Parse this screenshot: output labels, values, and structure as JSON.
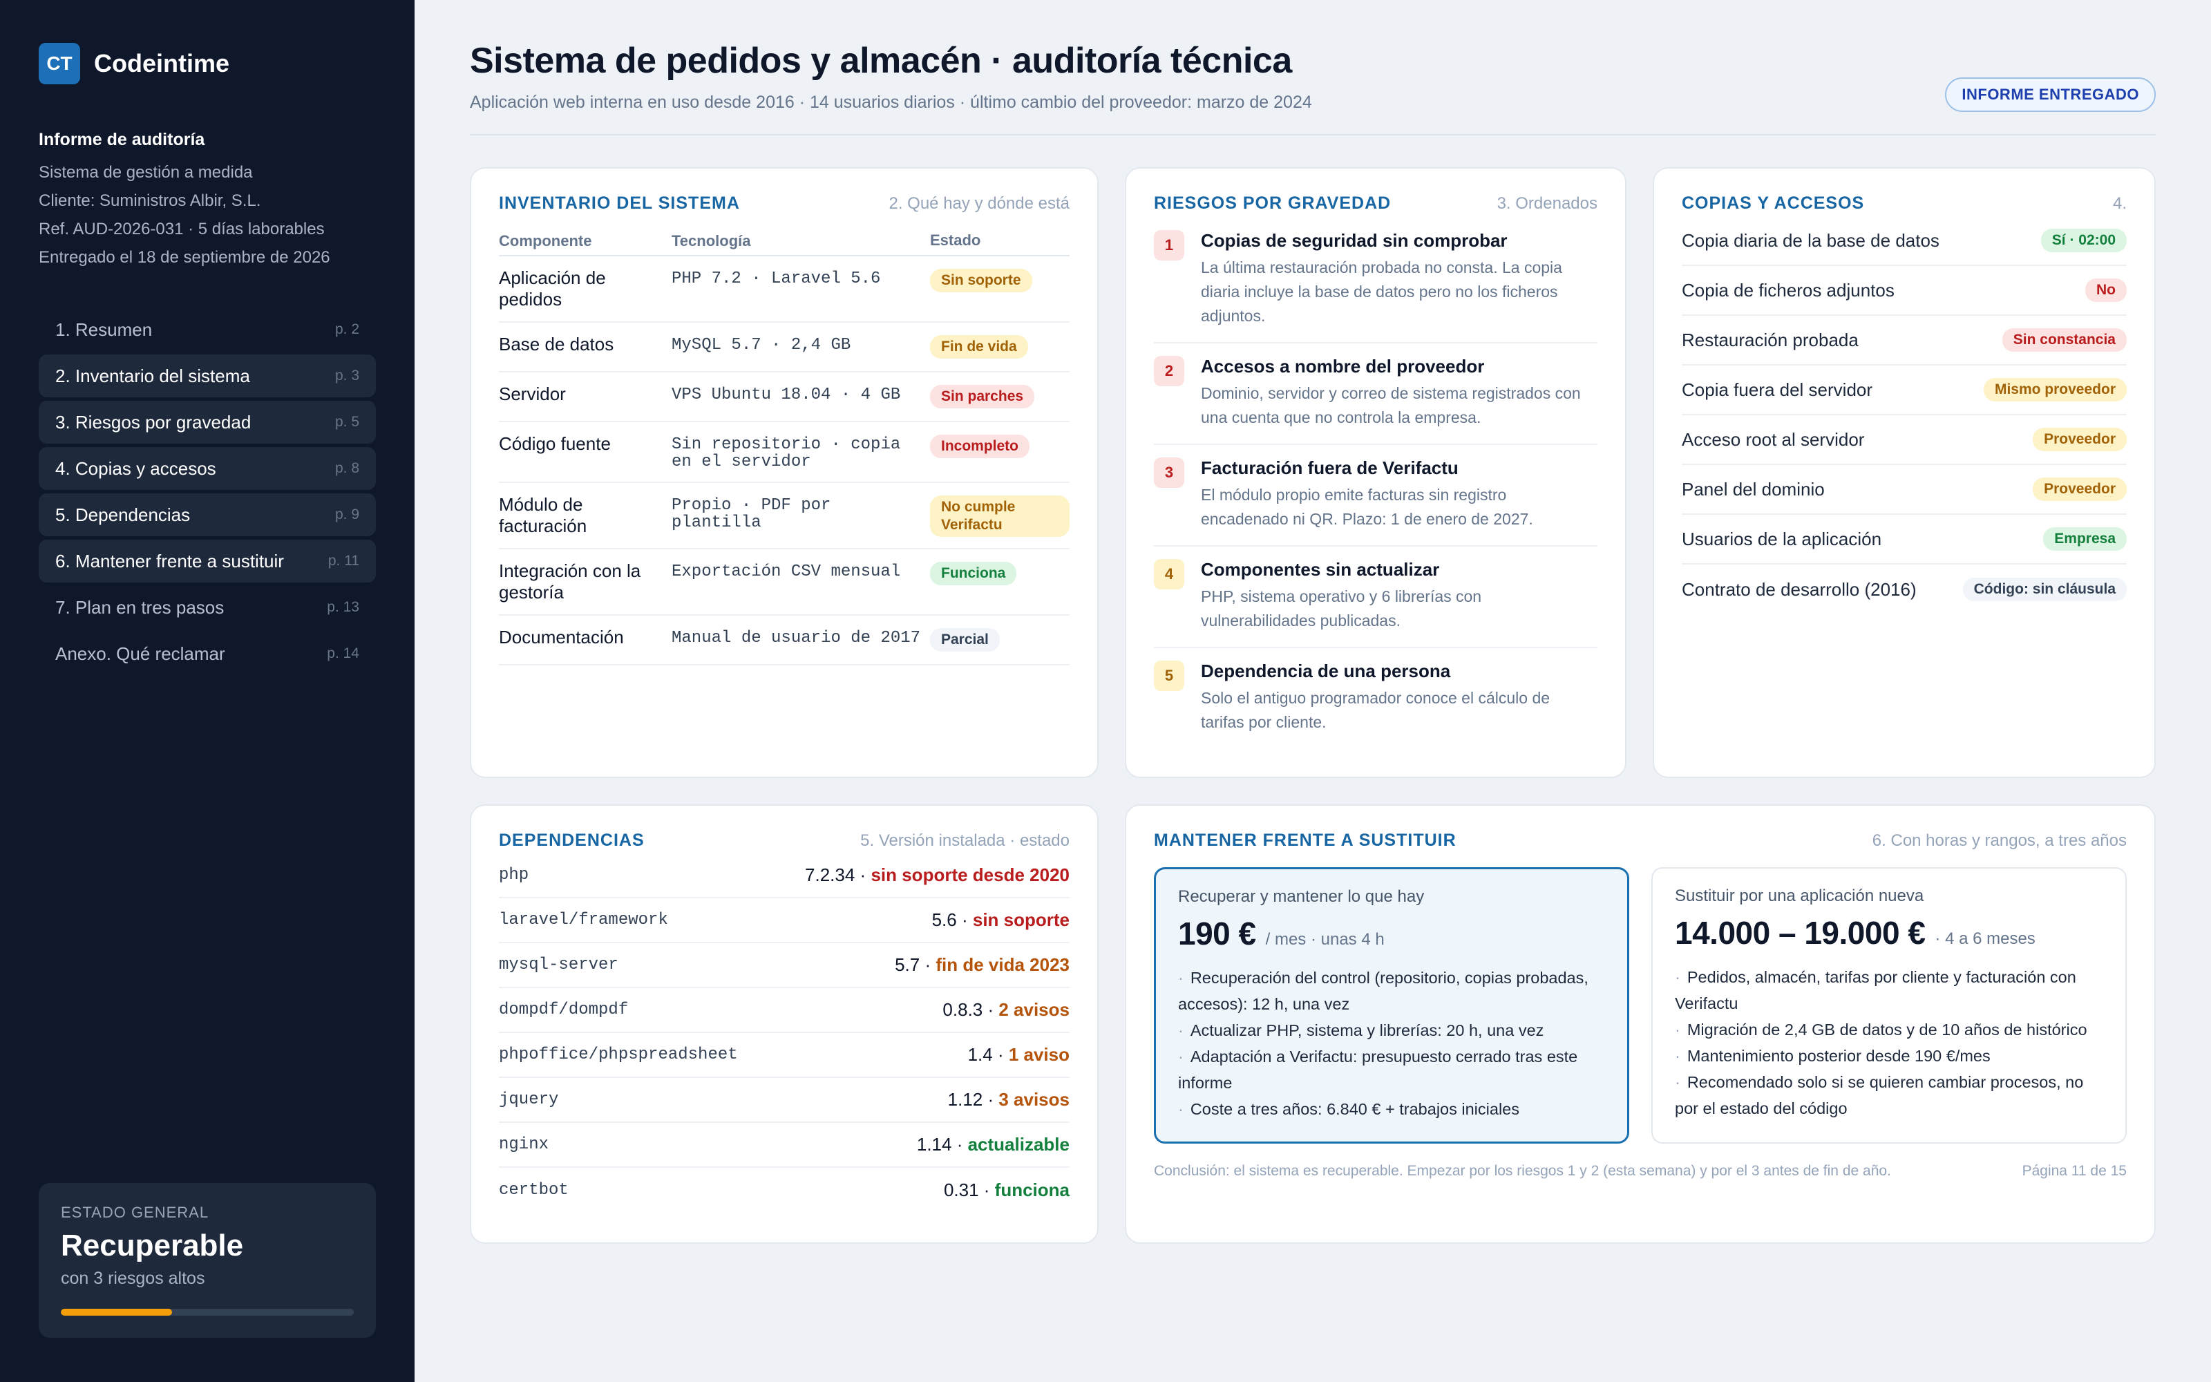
{
  "brand": {
    "mark": "CT",
    "name": "Codeintime"
  },
  "report": {
    "title": "Informe de auditoría",
    "lines": [
      "Sistema de gestión a medida",
      "Cliente: Suministros Albir, S.L.",
      "Ref. AUD-2026-031 · 5 días laborables",
      "Entregado el 18 de septiembre de 2026"
    ]
  },
  "toc": [
    {
      "label": "1. Resumen",
      "page": "p. 2",
      "active": false
    },
    {
      "label": "2. Inventario del sistema",
      "page": "p. 3",
      "active": true
    },
    {
      "label": "3. Riesgos por gravedad",
      "page": "p. 5",
      "active": true
    },
    {
      "label": "4. Copias y accesos",
      "page": "p. 8",
      "active": true
    },
    {
      "label": "5. Dependencias",
      "page": "p. 9",
      "active": true
    },
    {
      "label": "6. Mantener frente a sustituir",
      "page": "p. 11",
      "active": true
    },
    {
      "label": "7. Plan en tres pasos",
      "page": "p. 13",
      "active": false
    },
    {
      "label": "Anexo. Qué reclamar",
      "page": "p. 14",
      "active": false
    }
  ],
  "status": {
    "label": "ESTADO GENERAL",
    "value": "Recuperable",
    "sub": "con 3 riesgos altos",
    "progress": 0.38,
    "color": "#f59e0b"
  },
  "header": {
    "title": "Sistema de pedidos y almacén · auditoría técnica",
    "subtitle": "Aplicación web interna en uso desde 2016 · 14 usuarios diarios · último cambio del proveedor: marzo de 2024",
    "badge": "INFORME ENTREGADO"
  },
  "inventory": {
    "title": "INVENTARIO DEL SISTEMA",
    "note": "2. Qué hay y dónde está",
    "columns": [
      "Componente",
      "Tecnología",
      "Estado"
    ],
    "rows": [
      {
        "component": "Aplicación de pedidos",
        "tech": "PHP 7.2 · Laravel 5.6",
        "state": "Sin soporte",
        "tone": "amber"
      },
      {
        "component": "Base de datos",
        "tech": "MySQL 5.7 · 2,4 GB",
        "state": "Fin de vida",
        "tone": "amber"
      },
      {
        "component": "Servidor",
        "tech": "VPS Ubuntu 18.04 · 4 GB",
        "state": "Sin parches",
        "tone": "red"
      },
      {
        "component": "Código fuente",
        "tech": "Sin repositorio · copia en el servidor",
        "state": "Incompleto",
        "tone": "red"
      },
      {
        "component": "Módulo de facturación",
        "tech": "Propio · PDF por plantilla",
        "state": "No cumple Verifactu",
        "tone": "amber"
      },
      {
        "component": "Integración con la gestoría",
        "tech": "Exportación CSV mensual",
        "state": "Funciona",
        "tone": "green"
      },
      {
        "component": "Documentación",
        "tech": "Manual de usuario de 2017",
        "state": "Parcial",
        "tone": "gray"
      }
    ]
  },
  "risks": {
    "title": "RIESGOS POR GRAVEDAD",
    "note": "3. Ordenados",
    "items": [
      {
        "num": "1",
        "tone": "red",
        "title": "Copias de seguridad sin comprobar",
        "desc": "La última restauración probada no consta. La copia diaria incluye la base de datos pero no los ficheros adjuntos."
      },
      {
        "num": "2",
        "tone": "red",
        "title": "Accesos a nombre del proveedor",
        "desc": "Dominio, servidor y correo de sistema registrados con una cuenta que no controla la empresa."
      },
      {
        "num": "3",
        "tone": "red",
        "title": "Facturación fuera de Verifactu",
        "desc": "El módulo propio emite facturas sin registro encadenado ni QR. Plazo: 1 de enero de 2027."
      },
      {
        "num": "4",
        "tone": "amber",
        "title": "Componentes sin actualizar",
        "desc": "PHP, sistema operativo y 6 librerías con vulnerabilidades publicadas."
      },
      {
        "num": "5",
        "tone": "amber",
        "title": "Dependencia de una persona",
        "desc": "Solo el antiguo programador conoce el cálculo de tarifas por cliente."
      }
    ]
  },
  "copies": {
    "title": "COPIAS Y ACCESOS",
    "note": "4.",
    "rows": [
      {
        "label": "Copia diaria de la base de datos",
        "badge": "Sí · 02:00",
        "tone": "green"
      },
      {
        "label": "Copia de ficheros adjuntos",
        "badge": "No",
        "tone": "red"
      },
      {
        "label": "Restauración probada",
        "badge": "Sin constancia",
        "tone": "red"
      },
      {
        "label": "Copia fuera del servidor",
        "badge": "Mismo proveedor",
        "tone": "amber"
      },
      {
        "label": "Acceso root al servidor",
        "badge": "Proveedor",
        "tone": "amber"
      },
      {
        "label": "Panel del dominio",
        "badge": "Proveedor",
        "tone": "amber"
      },
      {
        "label": "Usuarios de la aplicación",
        "badge": "Empresa",
        "tone": "green"
      },
      {
        "label": "Contrato de desarrollo (2016)",
        "badge": "Código: sin cláusula",
        "tone": "gray"
      }
    ]
  },
  "deps": {
    "title": "DEPENDENCIAS",
    "note": "5. Versión instalada · estado",
    "rows": [
      {
        "name": "php",
        "version": "7.2.34",
        "status": "sin soporte desde 2020",
        "tone": "red"
      },
      {
        "name": "laravel/framework",
        "version": "5.6",
        "status": "sin soporte",
        "tone": "red"
      },
      {
        "name": "mysql-server",
        "version": "5.7",
        "status": "fin de vida 2023",
        "tone": "amber"
      },
      {
        "name": "dompdf/dompdf",
        "version": "0.8.3",
        "status": "2 avisos",
        "tone": "amber"
      },
      {
        "name": "phpoffice/phpspreadsheet",
        "version": "1.4",
        "status": "1 aviso",
        "tone": "amber"
      },
      {
        "name": "jquery",
        "version": "1.12",
        "status": "3 avisos",
        "tone": "amber"
      },
      {
        "name": "nginx",
        "version": "1.14",
        "status": "actualizable",
        "tone": "green"
      },
      {
        "name": "certbot",
        "version": "0.31",
        "status": "funciona",
        "tone": "green"
      }
    ]
  },
  "keep": {
    "title": "MANTENER FRENTE A SUSTITUIR",
    "note": "6. Con horas y rangos, a tres años",
    "options": [
      {
        "label": "Recuperar y mantener lo que hay",
        "amount": "190 €",
        "unit": "/ mes · unas 4 h",
        "items": [
          "Recuperación del control (repositorio, copias probadas, accesos): 12 h, una vez",
          "Actualizar PHP, sistema y librerías: 20 h, una vez",
          "Adaptación a Verifactu: presupuesto cerrado tras este informe",
          "Coste a tres años: 6.840 € + trabajos iniciales"
        ]
      },
      {
        "label": "Sustituir por una aplicación nueva",
        "amount": "14.000 – 19.000 €",
        "unit": "· 4 a 6 meses",
        "items": [
          "Pedidos, almacén, tarifas por cliente y facturación con Verifactu",
          "Migración de 2,4 GB de datos y de 10 años de histórico",
          "Mantenimiento posterior desde 190 €/mes",
          "Recomendado solo si se quieren cambiar procesos, no por el estado del código"
        ]
      }
    ],
    "conclusion": "Conclusión: el sistema es recuperable. Empezar por los riesgos 1 y 2 (esta semana) y por el 3 antes de fin de año.",
    "page": "Página 11 de 15"
  }
}
